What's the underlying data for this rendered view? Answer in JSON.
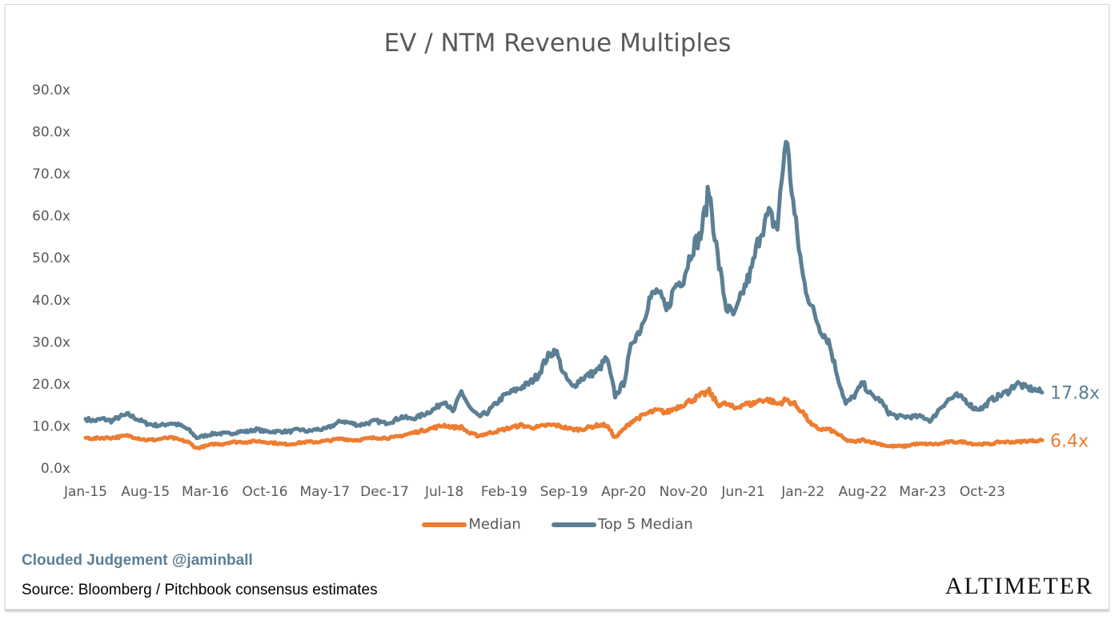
{
  "chart_data": {
    "type": "line",
    "title": "EV / NTM Revenue Multiples",
    "xlabel": "",
    "ylabel": "",
    "ylim": [
      0,
      90
    ],
    "y_ticks": [
      "0.0x",
      "10.0x",
      "20.0x",
      "30.0x",
      "40.0x",
      "50.0x",
      "60.0x",
      "70.0x",
      "80.0x",
      "90.0x"
    ],
    "x_ticks": [
      "Jan-15",
      "Aug-15",
      "Mar-16",
      "Oct-16",
      "May-17",
      "Dec-17",
      "Jul-18",
      "Feb-19",
      "Sep-19",
      "Apr-20",
      "Nov-20",
      "Jun-21",
      "Jan-22",
      "Aug-22",
      "Mar-23",
      "Oct-23"
    ],
    "x_start": "Jan-15",
    "x_step": "monthly",
    "grid": false,
    "legend_position": "bottom",
    "series": [
      {
        "name": "Median",
        "color": "#ED7D31",
        "end_label": "6.4x",
        "values": [
          7,
          6.8,
          7,
          7,
          7.2,
          7.5,
          7,
          6.5,
          6.5,
          6.8,
          7,
          6.5,
          6,
          4.5,
          5,
          5.5,
          5.5,
          6,
          6,
          6,
          6.2,
          6,
          5.8,
          5.5,
          5.5,
          5.8,
          6,
          6,
          6.2,
          6.5,
          6.8,
          6.5,
          6.5,
          6.8,
          7,
          7,
          7,
          7.5,
          8,
          8.5,
          9,
          9.5,
          10,
          9.5,
          9.5,
          8,
          7.5,
          8,
          8.5,
          9,
          9.5,
          10,
          9.5,
          9.5,
          10,
          10,
          9.5,
          9,
          9,
          9.5,
          10,
          10,
          7,
          9,
          11,
          12,
          13,
          13.5,
          13,
          14,
          15,
          16,
          17,
          18,
          15,
          15,
          14,
          15,
          15,
          16,
          16,
          15,
          16,
          15,
          13,
          10,
          9,
          9,
          8,
          6.5,
          6,
          6.5,
          6,
          5.5,
          5,
          5,
          5,
          5.5,
          5.5,
          5.5,
          5.5,
          6,
          6,
          6,
          5.5,
          5.5,
          5.5,
          6,
          6,
          6,
          6.2,
          6.3,
          6.4
        ]
      },
      {
        "name": "Top 5 Median",
        "color": "#5B7F95",
        "end_label": "17.8x",
        "values": [
          11.5,
          11,
          11.5,
          11,
          12,
          12.5,
          11.5,
          10.5,
          10,
          10,
          10.5,
          10,
          9,
          7,
          7.5,
          8,
          8,
          8,
          8.5,
          8.5,
          9,
          8.5,
          8.5,
          8.5,
          8.5,
          9,
          8.5,
          9,
          9,
          10,
          11,
          10.5,
          10,
          10.5,
          11,
          10.5,
          11,
          12,
          11.5,
          12,
          13,
          14,
          16,
          13,
          18,
          14,
          12,
          13,
          15,
          17,
          18,
          19,
          20,
          22,
          26,
          28,
          22,
          19,
          21,
          22,
          23,
          26,
          17,
          20,
          30,
          33,
          40,
          42,
          37,
          43,
          45,
          52,
          55,
          66,
          50,
          38,
          36,
          42,
          47,
          56,
          60,
          57,
          79,
          60,
          45,
          38,
          33,
          30,
          22,
          15,
          17,
          20,
          17,
          16,
          13,
          12,
          12,
          12,
          12,
          11,
          14,
          16,
          17,
          16,
          14,
          14,
          16,
          17,
          18,
          20,
          19,
          18.5,
          17.8
        ]
      }
    ]
  },
  "footer": {
    "credit": "Clouded Judgement @jaminball",
    "source": "Source: Bloomberg / Pitchbook consensus estimates",
    "logo": "ALTIMETER"
  }
}
